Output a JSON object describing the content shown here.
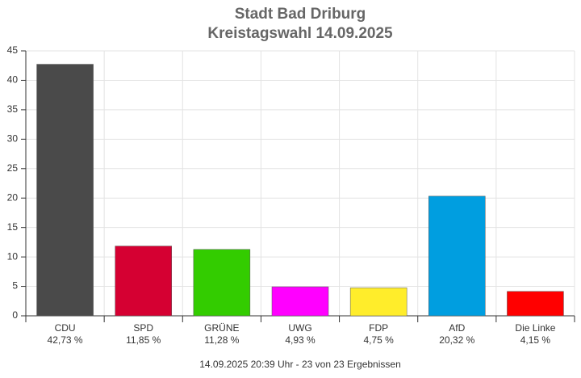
{
  "chart_data": {
    "type": "bar",
    "title": "Stadt Bad Driburg",
    "subtitle": "Kreistagswahl 14.09.2025",
    "categories": [
      "CDU",
      "SPD",
      "GRÜNE",
      "UWG",
      "FDP",
      "AfD",
      "Die Linke"
    ],
    "values": [
      42.73,
      11.85,
      11.28,
      4.93,
      4.75,
      20.32,
      4.15
    ],
    "value_labels": [
      "42,73 %",
      "11,85 %",
      "11,28 %",
      "4,93 %",
      "4,75 %",
      "20,32 %",
      "4,15 %"
    ],
    "colors": [
      "#4a4a4a",
      "#d50032",
      "#33cc00",
      "#ff00ff",
      "#ffed2b",
      "#009ee0",
      "#ff0000"
    ],
    "ylim": [
      0,
      45
    ],
    "yticks": [
      0,
      5,
      10,
      15,
      20,
      25,
      30,
      35,
      40,
      45
    ],
    "grid": true,
    "footer": "14.09.2025 20:39 Uhr - 23 von 23 Ergebnissen"
  }
}
